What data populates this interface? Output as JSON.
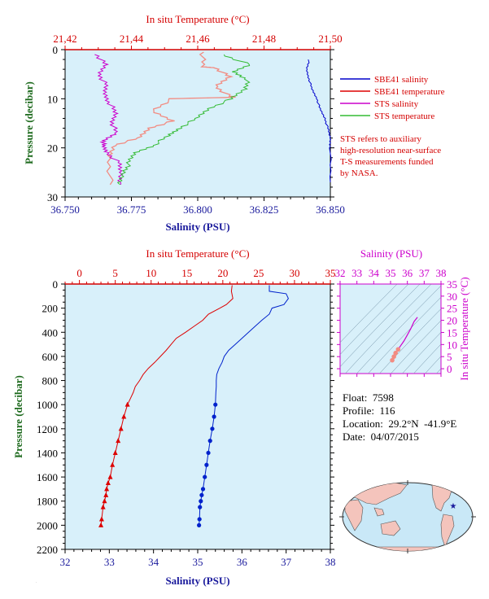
{
  "chart_data": [
    {
      "type": "line",
      "panel": "upper",
      "top_axis": {
        "label": "In situ Temperature (°C)",
        "range": [
          21.42,
          21.5
        ],
        "ticks": [
          "21,42",
          "21,44",
          "21,46",
          "21,48",
          "21,50"
        ],
        "color": "#d40000"
      },
      "bottom_axis": {
        "label": "Salinity (PSU)",
        "range": [
          36.75,
          36.85
        ],
        "ticks": [
          "36.750",
          "36.775",
          "36.800",
          "36.825",
          "36.850"
        ],
        "color": "#1a1a9c"
      },
      "y_axis": {
        "label": "Pressure (decibar)",
        "range": [
          0,
          30
        ],
        "inverted": true,
        "ticks": [
          "0",
          "10",
          "20",
          "30"
        ],
        "color": "#1f6b1f"
      },
      "legend": [
        {
          "label": "SBE41 salinity",
          "color": "#0000cc"
        },
        {
          "label": "SBE41 temperature",
          "color": "#dd0000"
        },
        {
          "label": "STS salinity",
          "color": "#cc00cc"
        },
        {
          "label": "STS temperature",
          "color": "#33bb33"
        }
      ],
      "note": [
        "STS refers to auxiliary",
        "high-resolution near-surface",
        "T-S measurements funded",
        "by NASA."
      ],
      "series": [
        {
          "name": "SBE41 salinity",
          "axis": "bottom",
          "x": [
            36.842,
            36.841,
            36.842,
            36.843,
            36.845,
            36.846,
            36.848,
            36.849,
            36.85,
            36.85,
            36.85
          ],
          "y": [
            2,
            4,
            6,
            8,
            10,
            12,
            14,
            16,
            18,
            20,
            27
          ]
        },
        {
          "name": "SBE41 temperature",
          "axis": "top",
          "x": [
            21.4616,
            21.4614,
            21.4655,
            21.4693,
            21.4656,
            21.4695,
            21.4713,
            21.4522,
            21.4461,
            21.4528,
            21.4452,
            21.4424,
            21.4345,
            21.4334,
            21.4336
          ],
          "y": [
            0.5,
            3.5,
            3.7,
            5.5,
            7.5,
            9.5,
            9.7,
            10,
            12.5,
            14.5,
            16,
            18,
            19.5,
            22,
            27.5
          ]
        },
        {
          "name": "STS salinity",
          "axis": "bottom",
          "x": [
            36.762,
            36.765,
            36.763,
            36.765,
            36.765,
            36.767,
            36.769,
            36.768,
            36.769,
            36.765,
            36.764,
            36.766,
            36.77,
            36.771,
            36.771
          ],
          "y": [
            1,
            3,
            5,
            7,
            9,
            11,
            13,
            15,
            17,
            18.5,
            19.5,
            21,
            23,
            25,
            27.5
          ]
        },
        {
          "name": "STS temperature",
          "axis": "top",
          "x": [
            21.4675,
            21.4755,
            21.4708,
            21.475,
            21.4742,
            21.4703,
            21.4632,
            21.4598,
            21.4543,
            21.4513,
            21.4466,
            21.4411,
            21.4394,
            21.4375,
            21.4366
          ],
          "y": [
            1,
            3,
            4.5,
            6,
            8,
            10,
            12,
            14,
            16,
            17.5,
            19.5,
            21,
            23,
            25,
            27.5
          ]
        }
      ]
    },
    {
      "type": "line",
      "panel": "lower",
      "top_axis": {
        "label": "In situ Temperature (°C)",
        "range": [
          -2,
          35
        ],
        "ticks": [
          "0",
          "5",
          "10",
          "15",
          "20",
          "25",
          "30",
          "35"
        ],
        "color": "#d40000"
      },
      "bottom_axis": {
        "label": "Salinity (PSU)",
        "range": [
          32,
          38
        ],
        "ticks": [
          "32",
          "33",
          "34",
          "35",
          "36",
          "37",
          "38"
        ],
        "color": "#1a1a9c"
      },
      "y_axis": {
        "label": "Pressure (decibar)",
        "range": [
          0,
          2200
        ],
        "inverted": true,
        "ticks": [
          "0",
          "200",
          "400",
          "600",
          "800",
          "1000",
          "1200",
          "1400",
          "1600",
          "1800",
          "2000",
          "2200"
        ],
        "color": "#1f6b1f"
      },
      "series": [
        {
          "name": "Temperature",
          "axis": "top",
          "color": "#dd0000",
          "x": [
            21.3,
            21.2,
            21.4,
            20.5,
            19.6,
            18.0,
            17.2,
            16.0,
            14.8,
            13.5,
            12.8,
            12.1,
            11.3,
            10.5,
            9.6,
            8.9,
            8.4,
            7.8,
            7.5,
            7.1,
            6.7,
            6.2,
            5.8,
            5.4,
            5.0,
            4.6,
            4.3,
            4.0,
            3.8,
            3.7,
            3.5,
            3.3,
            3.1,
            3.0
          ],
          "y": [
            10,
            60,
            120,
            170,
            200,
            250,
            300,
            350,
            400,
            450,
            500,
            550,
            600,
            650,
            700,
            750,
            800,
            850,
            900,
            950,
            1000,
            1100,
            1200,
            1300,
            1400,
            1500,
            1600,
            1650,
            1700,
            1750,
            1800,
            1850,
            1950,
            2000
          ]
        },
        {
          "name": "Salinity",
          "axis": "bottom",
          "color": "#0022cc",
          "x": [
            36.62,
            36.62,
            37.0,
            37.05,
            36.95,
            36.68,
            36.62,
            36.45,
            36.3,
            36.15,
            36.0,
            35.85,
            35.7,
            35.6,
            35.55,
            35.48,
            35.43,
            35.42,
            35.42,
            35.41,
            35.4,
            35.37,
            35.33,
            35.28,
            35.24,
            35.2,
            35.16,
            35.12,
            35.09,
            35.07,
            35.05,
            35.04,
            35.03
          ],
          "y": [
            10,
            60,
            80,
            120,
            170,
            200,
            250,
            300,
            350,
            400,
            450,
            500,
            550,
            600,
            650,
            700,
            750,
            800,
            850,
            900,
            1000,
            1100,
            1200,
            1300,
            1400,
            1500,
            1600,
            1700,
            1750,
            1800,
            1850,
            1950,
            2000
          ]
        }
      ],
      "markers_from_pressure": 1000
    },
    {
      "type": "scatter",
      "panel": "ts-inset",
      "top_axis": {
        "label": "Salinity (PSU)",
        "range": [
          32,
          38
        ],
        "ticks": [
          "32",
          "33",
          "34",
          "35",
          "36",
          "37",
          "38"
        ],
        "color": "#cc00cc"
      },
      "right_axis": {
        "label": "In situ Temperature (°C)",
        "range": [
          -2,
          35
        ],
        "ticks": [
          "0",
          "5",
          "10",
          "15",
          "20",
          "25",
          "30",
          "35"
        ],
        "color": "#cc00cc"
      },
      "series": [
        {
          "name": "T-S",
          "color": "#cc00cc",
          "x": [
            36.6,
            36.4,
            36.2,
            36.0,
            35.8,
            35.6,
            35.45,
            35.3,
            35.2,
            35.1
          ],
          "y": [
            21.3,
            19.5,
            16.5,
            14.0,
            11.5,
            9.5,
            8.0,
            6.5,
            5.0,
            3.5
          ]
        }
      ]
    }
  ],
  "float_info": {
    "float": "Float:  7598",
    "profile": "Profile:  116",
    "location": "Location:  29.2°N  -41.9°E",
    "date": "Date:  04/07/2015"
  },
  "colors": {
    "plot_bg": "#d8f0fa",
    "ocean": "#c9e8f7",
    "land": "#f4c4bc",
    "marker": "#1a1a9c"
  }
}
